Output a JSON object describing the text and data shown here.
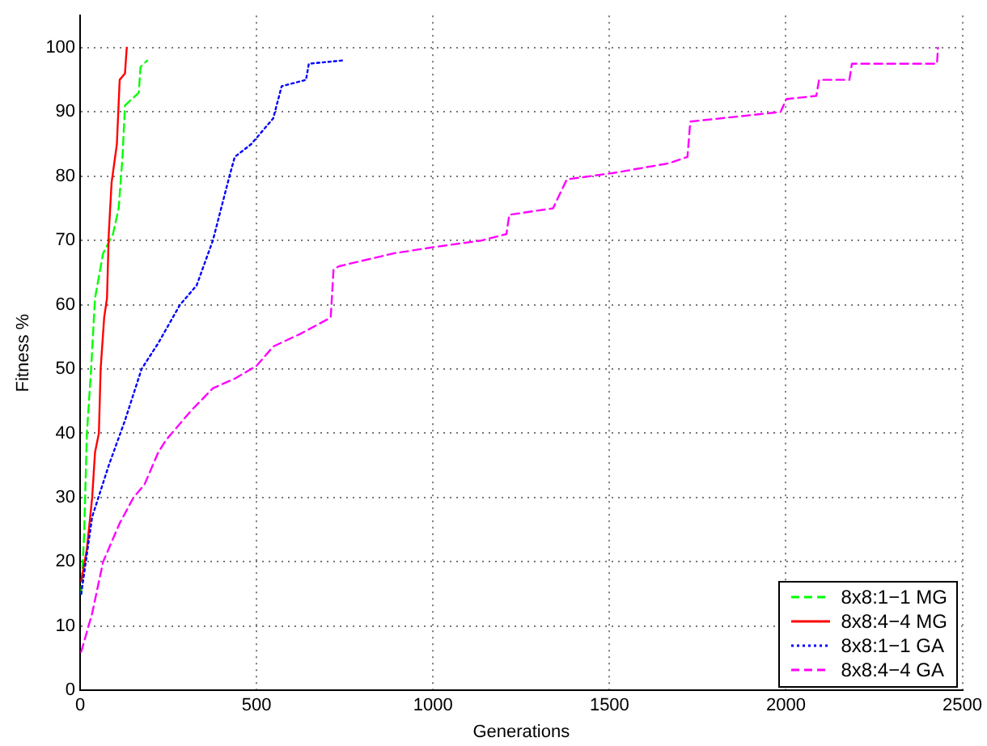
{
  "chart_data": {
    "type": "line",
    "xlabel": "Generations",
    "ylabel": "Fitness %",
    "xlim": [
      0,
      2500
    ],
    "xticks": [
      0,
      500,
      1000,
      1500,
      2000,
      2500
    ],
    "ylim": [
      0,
      105
    ],
    "yticks": [
      0,
      10,
      20,
      30,
      40,
      50,
      60,
      70,
      80,
      90,
      100
    ],
    "grid": true,
    "legend": "bottom right",
    "marker": "none",
    "series": [
      {
        "name": "8x8:1−1 MG",
        "color": "#00ff00",
        "line_style": "dashed",
        "x": [
          3,
          11,
          19,
          31,
          42,
          65,
          93,
          109,
          120,
          127,
          166,
          171,
          190
        ],
        "values": [
          15,
          24,
          40,
          50,
          61,
          68,
          71,
          75,
          83,
          91,
          93,
          97,
          98
        ]
      },
      {
        "name": "8x8:4−4 MG",
        "color": "#ff0000",
        "line_style": "solid",
        "x": [
          3,
          19,
          34,
          42,
          53,
          58,
          68,
          76,
          81,
          89,
          104,
          112,
          127,
          132
        ],
        "values": [
          17,
          22,
          30,
          37,
          40,
          50,
          58,
          61,
          71,
          79,
          85,
          95,
          96,
          100
        ]
      },
      {
        "name": "8x8:1−1 GA",
        "color": "#0000ff",
        "line_style": "dotted",
        "x": [
          3,
          34,
          81,
          127,
          174,
          221,
          283,
          330,
          376,
          423,
          438,
          485,
          547,
          571,
          640,
          648,
          742
        ],
        "values": [
          15,
          27,
          35,
          42,
          50,
          54,
          60,
          63,
          70,
          80,
          83,
          85,
          89,
          94,
          95,
          97.5,
          98
        ]
      },
      {
        "name": "8x8:4−4 GA",
        "color": "#ff00ff",
        "line_style": "dashed",
        "x": [
          3,
          34,
          65,
          112,
          151,
          182,
          221,
          244,
          283,
          314,
          376,
          438,
          500,
          547,
          625,
          710,
          718,
          734,
          889,
          1006,
          1138,
          1208,
          1216,
          1340,
          1379,
          1511,
          1667,
          1721,
          1729,
          1985,
          2001,
          2086,
          2094,
          2180,
          2187,
          2428,
          2431
        ],
        "values": [
          6,
          12,
          20,
          26,
          30,
          32,
          37,
          39,
          41.5,
          43.5,
          47,
          48.5,
          50.5,
          53.5,
          55.5,
          58,
          65.5,
          66,
          68,
          69,
          70,
          71,
          74,
          75,
          79.5,
          80.5,
          82,
          83,
          88.5,
          90,
          92,
          92.5,
          95,
          95,
          97.5,
          97.5,
          100
        ]
      }
    ]
  }
}
